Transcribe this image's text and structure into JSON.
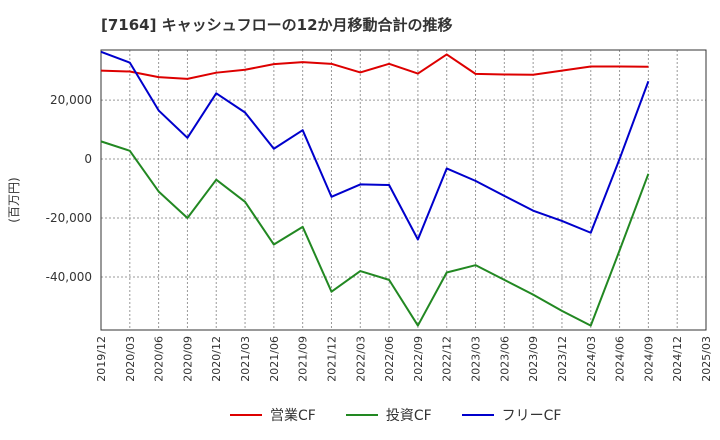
{
  "chart_data": {
    "type": "line",
    "title": "[7164]  キャッシュフローの12か月移動合計の推移",
    "ylabel": "(百万円)",
    "xlabel": "",
    "ylim": [
      -58000,
      37000
    ],
    "yticks": [
      20000,
      0,
      -20000,
      -40000
    ],
    "ytick_labels": [
      "20,000",
      "0",
      "-20,000",
      "-40,000"
    ],
    "x_tick_labels": [
      "2019/12",
      "2020/03",
      "2020/06",
      "2020/09",
      "2020/12",
      "2021/03",
      "2021/06",
      "2021/09",
      "2021/12",
      "2022/03",
      "2022/06",
      "2022/09",
      "2022/12",
      "2023/03",
      "2023/06",
      "2023/09",
      "2023/12",
      "2024/03",
      "2024/06",
      "2024/09",
      "2024/12",
      "2025/03"
    ],
    "grid": true,
    "legend_position": "bottom",
    "series": [
      {
        "name": "営業CF",
        "color": "#dd0000",
        "values": [
          30000,
          29700,
          27800,
          27200,
          29300,
          30300,
          32200,
          32900,
          32300,
          29400,
          32300,
          29000,
          35500,
          28900,
          28700,
          28600,
          30000,
          31400,
          31400,
          31300
        ]
      },
      {
        "name": "投資CF",
        "color": "#228822",
        "values": [
          6000,
          2800,
          -11000,
          -20000,
          -7000,
          -14500,
          -29000,
          -23000,
          -45000,
          -38000,
          -41000,
          -56500,
          -38500,
          -36000,
          -41000,
          -46000,
          -51500,
          -56500,
          -31000,
          -5000
        ]
      },
      {
        "name": "フリーCF",
        "color": "#0000cc",
        "values": [
          36400,
          32700,
          16500,
          7200,
          22300,
          15800,
          3500,
          9800,
          -12800,
          -8600,
          -8800,
          -27300,
          -3200,
          -7400,
          -12500,
          -17500,
          -21000,
          -25000,
          0,
          26400
        ]
      }
    ]
  }
}
